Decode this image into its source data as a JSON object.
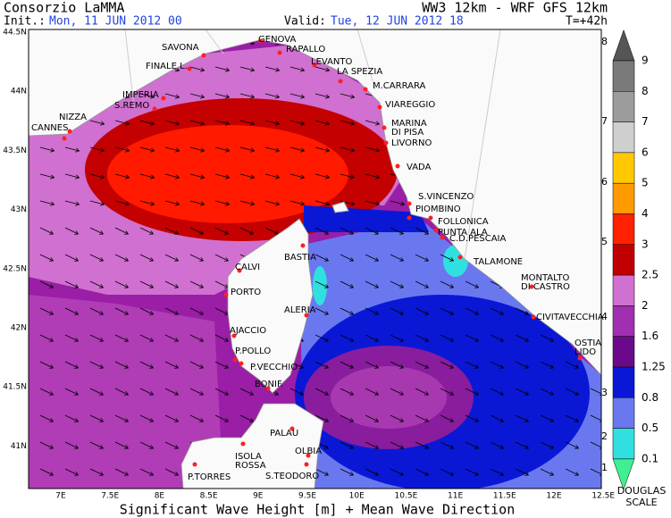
{
  "header": {
    "title": "Consorzio LaMMA",
    "model": "WW3 12km - WRF GFS 12km",
    "init_label": "Init.:",
    "init": "Mon, 11 JUN 2012  00",
    "valid_label": "Valid:",
    "valid": "Tue, 12 JUN 2012  18",
    "lead": "T=+42h"
  },
  "map": {
    "lon_ticks": [
      "7E",
      "7.5E",
      "8E",
      "8.5E",
      "9E",
      "9.5E",
      "10E",
      "10.5E",
      "11E",
      "11.5E",
      "12E",
      "12.5E"
    ],
    "lat_ticks": [
      "44.5N",
      "44N",
      "43.5N",
      "43N",
      "42.5N",
      "42N",
      "41.5N",
      "41N"
    ],
    "places": [
      [
        "SAVONA"
      ],
      [
        "GENOVA"
      ],
      [
        "RAPALLO"
      ],
      [
        "FINALE L."
      ],
      [
        "LEVANTO"
      ],
      [
        "LA SPEZIA"
      ],
      [
        "M.CARRARA"
      ],
      [
        "IMPERIA"
      ],
      [
        "S.REMO"
      ],
      [
        "VIAREGGIO"
      ],
      [
        "NIZZA"
      ],
      [
        "MARINA",
        "DI PISA"
      ],
      [
        "CANNES"
      ],
      [
        "LIVORNO"
      ],
      [
        "VADA"
      ],
      [
        "S.VINCENZO"
      ],
      [
        "PIOMBINO"
      ],
      [
        "FOLLONICA"
      ],
      [
        "PUNTA ALA"
      ],
      [
        "C.D.PESCAIA"
      ],
      [
        "BASTIA"
      ],
      [
        "CALVI"
      ],
      [
        "TALAMONE"
      ],
      [
        "MONTALTO",
        "DI CASTRO"
      ],
      [
        "PORTO"
      ],
      [
        "ALERIA"
      ],
      [
        "CIVITAVECCHIA"
      ],
      [
        "AJACCIO"
      ],
      [
        "OSTIA",
        "LIDO"
      ],
      [
        "P.POLLO"
      ],
      [
        "P.VECCHIO"
      ],
      [
        "BONIF."
      ],
      [
        "PALAU"
      ],
      [
        "OLBIA"
      ],
      [
        "ISOLA",
        "ROSSA"
      ],
      [
        "P.TORRES"
      ],
      [
        "S.TEODORO"
      ]
    ]
  },
  "legend": {
    "height_labels": [
      "9",
      "8",
      "7",
      "6",
      "5",
      "4",
      "3",
      "2.5",
      "2",
      "1.6",
      "1.25",
      "0.8",
      "0.5",
      "0.1"
    ],
    "douglas_labels": [
      "8",
      "7",
      "6",
      "5",
      "4",
      "3",
      "2",
      "1"
    ],
    "scale_title": [
      "DOUGLAS",
      "SCALE"
    ]
  },
  "footer": "Significant Wave Height [m] + Mean Wave Direction"
}
